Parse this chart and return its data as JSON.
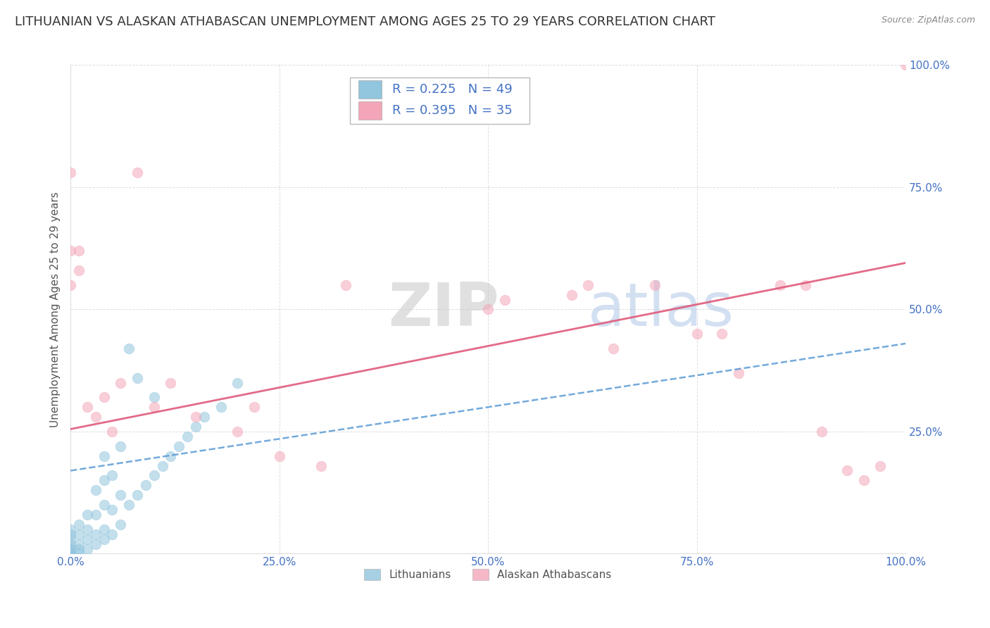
{
  "title": "LITHUANIAN VS ALASKAN ATHABASCAN UNEMPLOYMENT AMONG AGES 25 TO 29 YEARS CORRELATION CHART",
  "source": "Source: ZipAtlas.com",
  "xlabel": "",
  "ylabel": "Unemployment Among Ages 25 to 29 years",
  "xlim": [
    0,
    1
  ],
  "ylim": [
    0,
    1
  ],
  "xticks": [
    0.0,
    0.25,
    0.5,
    0.75,
    1.0
  ],
  "yticks": [
    0.25,
    0.5,
    0.75,
    1.0
  ],
  "xticklabels": [
    "0.0%",
    "25.0%",
    "50.0%",
    "75.0%",
    "100.0%"
  ],
  "yticklabels": [
    "25.0%",
    "50.0%",
    "75.0%",
    "100.0%"
  ],
  "legend_r1": "R = 0.225",
  "legend_n1": "N = 49",
  "legend_r2": "R = 0.395",
  "legend_n2": "N = 35",
  "color_blue": "#92c5de",
  "color_pink": "#f4a6b8",
  "color_blue_line": "#5b9bd5",
  "color_pink_line": "#e05a7a",
  "title_fontsize": 13,
  "axis_label_fontsize": 11,
  "tick_fontsize": 11,
  "background_color": "#ffffff",
  "watermark_zip": "ZIP",
  "watermark_atlas": "atlas",
  "scatter_alpha": 0.55,
  "marker_size": 110,
  "lithuanians_x": [
    0.0,
    0.0,
    0.0,
    0.0,
    0.0,
    0.0,
    0.0,
    0.0,
    0.0,
    0.0,
    0.01,
    0.01,
    0.01,
    0.01,
    0.01,
    0.02,
    0.02,
    0.02,
    0.02,
    0.03,
    0.03,
    0.03,
    0.03,
    0.04,
    0.04,
    0.04,
    0.04,
    0.04,
    0.05,
    0.05,
    0.05,
    0.06,
    0.06,
    0.06,
    0.07,
    0.07,
    0.08,
    0.08,
    0.09,
    0.1,
    0.1,
    0.11,
    0.12,
    0.13,
    0.14,
    0.15,
    0.16,
    0.18,
    0.2
  ],
  "lithuanians_y": [
    0.0,
    0.0,
    0.0,
    0.0,
    0.01,
    0.01,
    0.02,
    0.03,
    0.04,
    0.05,
    0.0,
    0.01,
    0.02,
    0.04,
    0.06,
    0.01,
    0.03,
    0.05,
    0.08,
    0.02,
    0.04,
    0.08,
    0.13,
    0.03,
    0.05,
    0.1,
    0.15,
    0.2,
    0.04,
    0.09,
    0.16,
    0.06,
    0.12,
    0.22,
    0.1,
    0.42,
    0.12,
    0.36,
    0.14,
    0.16,
    0.32,
    0.18,
    0.2,
    0.22,
    0.24,
    0.26,
    0.28,
    0.3,
    0.35
  ],
  "athabascans_x": [
    0.0,
    0.0,
    0.0,
    0.01,
    0.01,
    0.02,
    0.03,
    0.04,
    0.05,
    0.06,
    0.08,
    0.1,
    0.12,
    0.15,
    0.2,
    0.22,
    0.25,
    0.3,
    0.33,
    0.5,
    0.52,
    0.6,
    0.62,
    0.65,
    0.7,
    0.75,
    0.78,
    0.8,
    0.85,
    0.88,
    0.9,
    0.93,
    0.95,
    0.97,
    1.0
  ],
  "athabascans_y": [
    0.55,
    0.62,
    0.78,
    0.58,
    0.62,
    0.3,
    0.28,
    0.32,
    0.25,
    0.35,
    0.78,
    0.3,
    0.35,
    0.28,
    0.25,
    0.3,
    0.2,
    0.18,
    0.55,
    0.5,
    0.52,
    0.53,
    0.55,
    0.42,
    0.55,
    0.45,
    0.45,
    0.37,
    0.55,
    0.55,
    0.25,
    0.17,
    0.15,
    0.18,
    1.0
  ],
  "blue_trend_x": [
    0.0,
    1.0
  ],
  "blue_trend_y": [
    0.17,
    0.43
  ],
  "pink_trend_x": [
    0.0,
    1.0
  ],
  "pink_trend_y": [
    0.255,
    0.595
  ]
}
